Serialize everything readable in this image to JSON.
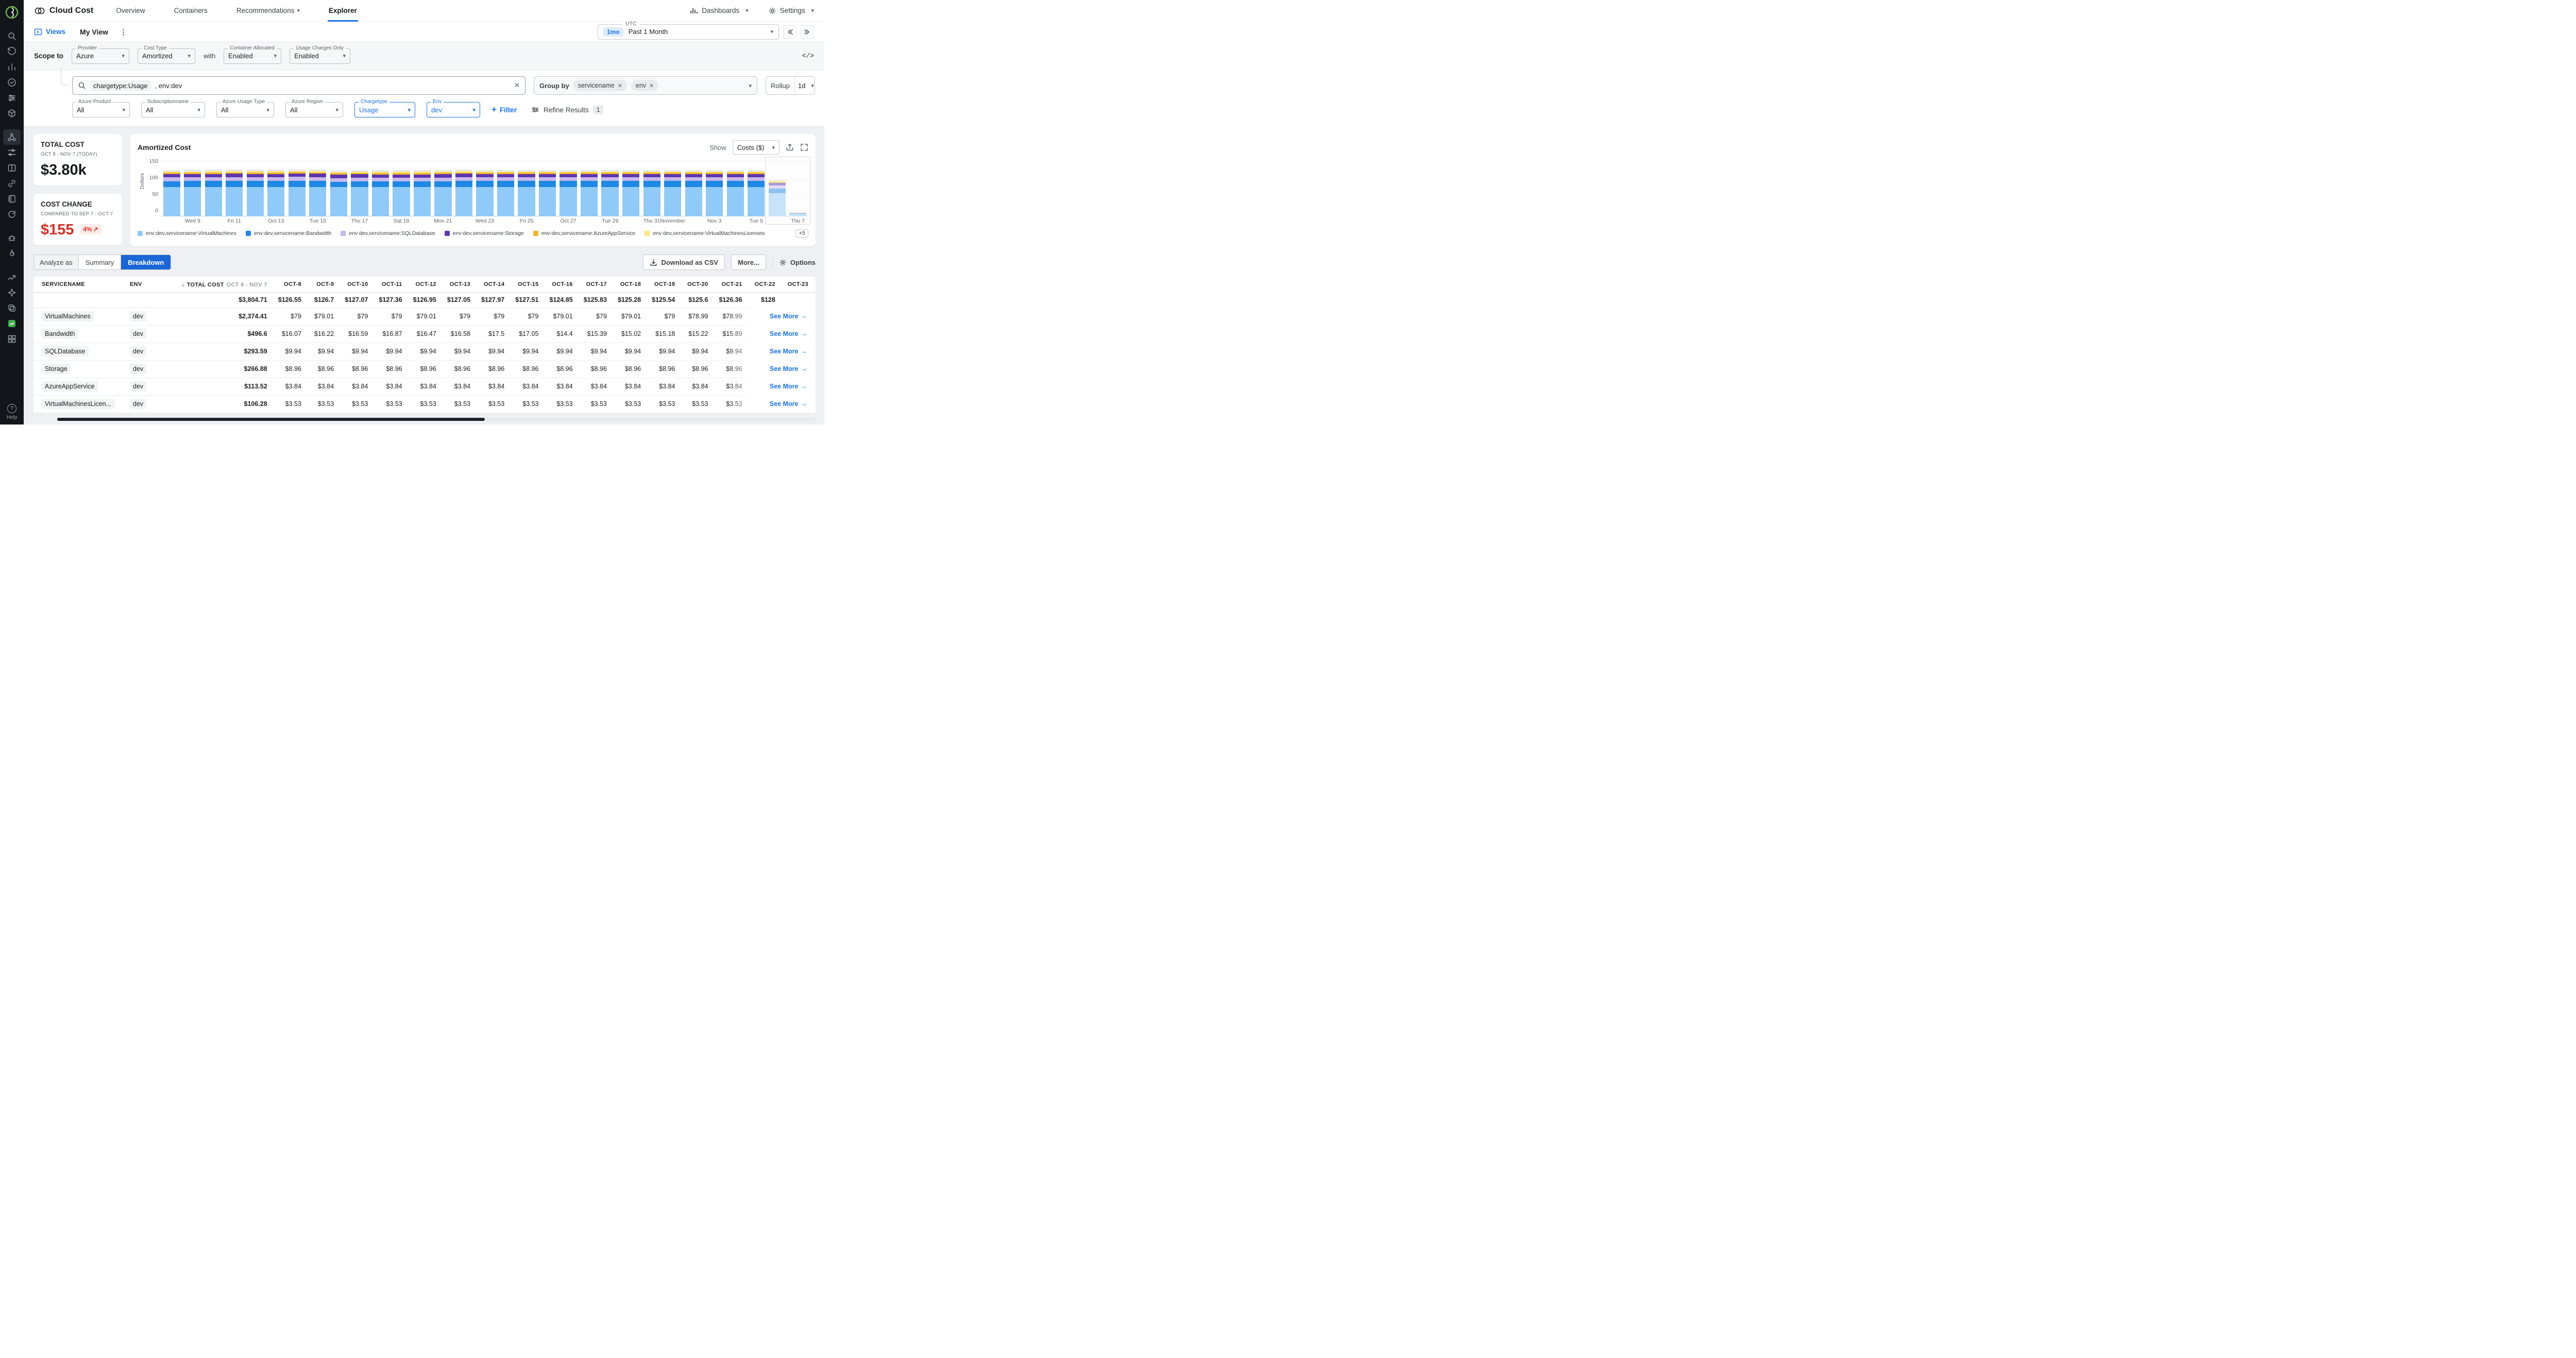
{
  "accent": "#1a73e8",
  "sidebar": {
    "help_label": "Help",
    "icon_names": [
      "app-logo",
      "search-icon",
      "history-icon",
      "bar-chart-icon",
      "check-circle-icon",
      "abacus-icon",
      "cube-icon",
      "network-nodes-icon",
      "tune-icon",
      "columns-icon",
      "link-icon",
      "notebook-icon",
      "sync-icon",
      "bug-icon",
      "flame-icon",
      "trend-icon",
      "spark-icon",
      "copy-icon",
      "cloud-cost-active-icon",
      "grid-icon",
      "help-icon"
    ]
  },
  "topnav": {
    "brand": "Cloud Cost",
    "items": [
      "Overview",
      "Containers",
      "Recommendations",
      "Explorer"
    ],
    "active": "Explorer",
    "dashboards": "Dashboards",
    "settings": "Settings"
  },
  "viewsbar": {
    "views_label": "Views",
    "current_view": "My View",
    "timezone_label": "UTC",
    "range_badge": "1mo",
    "range_value": "Past 1 Month"
  },
  "scope": {
    "label": "Scope to",
    "with_label": "with",
    "selects": [
      {
        "label": "Provider",
        "value": "Azure"
      },
      {
        "label": "Cost Type",
        "value": "Amortized"
      },
      {
        "label": "Container Allocated",
        "value": "Enabled"
      },
      {
        "label": "Usage Charges Only",
        "value": "Enabled"
      }
    ]
  },
  "filterbar": {
    "search_tokens": [
      "chargetype:Usage",
      ", env:dev"
    ],
    "group_by_label": "Group by",
    "group_chips": [
      "servicename",
      "env"
    ],
    "rollup_label": "Rollup",
    "rollup_value": "1d",
    "selects": [
      {
        "label": "Azure Product",
        "value": "All"
      },
      {
        "label": "Subscriptionname",
        "value": "All"
      },
      {
        "label": "Azure Usage Type",
        "value": "All"
      },
      {
        "label": "Azure Region",
        "value": "All"
      },
      {
        "label": "Chargetype",
        "value": "Usage"
      },
      {
        "label": "Env",
        "value": "dev"
      }
    ],
    "add_filter": "Filter",
    "refine": "Refine Results",
    "refine_count": "1"
  },
  "cards": {
    "total": {
      "title": "TOTAL COST",
      "subtitle": "OCT 8 - NOV 7 (TODAY)",
      "value": "$3.80k"
    },
    "change": {
      "title": "COST CHANGE",
      "subtitle": "COMPARED TO SEP 7 - OCT 7",
      "value": "$155",
      "delta": "4%",
      "delta_arrow": "↗"
    }
  },
  "chart": {
    "title": "Amortized Cost",
    "show_label": "Show",
    "show_value": "Costs ($)",
    "ylabel": "Dollars",
    "ytick_labels": [
      "150",
      "100",
      "50",
      "0"
    ],
    "more_badge": "+5"
  },
  "chart_data": {
    "type": "bar",
    "stacked": true,
    "title": "Amortized Cost",
    "ylabel": "Dollars",
    "ylim": [
      0,
      150
    ],
    "legend_position": "bottom",
    "x": [
      "Oct 8",
      "Oct 9",
      "Oct 10",
      "Oct 11",
      "Oct 12",
      "Oct 13",
      "Oct 14",
      "Oct 15",
      "Oct 16",
      "Oct 17",
      "Oct 18",
      "Oct 19",
      "Oct 20",
      "Oct 21",
      "Oct 22",
      "Oct 23",
      "Oct 24",
      "Oct 25",
      "Oct 26",
      "Oct 27",
      "Oct 28",
      "Oct 29",
      "Oct 30",
      "Oct 31",
      "Nov 1",
      "Nov 2",
      "Nov 3",
      "Nov 4",
      "Nov 5",
      "Nov 6",
      "Nov 7"
    ],
    "xticks": [
      {
        "i": 1,
        "t": "Wed 9"
      },
      {
        "i": 3,
        "t": "Fri 11"
      },
      {
        "i": 5,
        "t": "Oct 13"
      },
      {
        "i": 7,
        "t": "Tue 15"
      },
      {
        "i": 9,
        "t": "Thu 17"
      },
      {
        "i": 11,
        "t": "Sat 19"
      },
      {
        "i": 13,
        "t": "Mon 21"
      },
      {
        "i": 15,
        "t": "Wed 23"
      },
      {
        "i": 17,
        "t": "Fri 25"
      },
      {
        "i": 19,
        "t": "Oct 27"
      },
      {
        "i": 21,
        "t": "Tue 29"
      },
      {
        "i": 23,
        "t": "Thu 31"
      },
      {
        "i": 24,
        "t": "November"
      },
      {
        "i": 26,
        "t": "Nov 3"
      },
      {
        "i": 28,
        "t": "Tue 5"
      },
      {
        "i": 30,
        "t": "Thu 7"
      }
    ],
    "series": [
      {
        "name": "VirtualMachines",
        "label": "env:dev,servicename:VirtualMachines",
        "color": "#90CAF9",
        "values": [
          79,
          79.01,
          79,
          79,
          79.01,
          79,
          79,
          79,
          79.01,
          79,
          79.01,
          79,
          78.99,
          78.99,
          79,
          79,
          79,
          79,
          79,
          79,
          79,
          79,
          79,
          79,
          79,
          79,
          79,
          79,
          79,
          62,
          7
        ]
      },
      {
        "name": "Bandwidth",
        "label": "env:dev,servicename:Bandwidth",
        "color": "#1E88E5",
        "values": [
          16.07,
          16.22,
          16.59,
          16.87,
          16.47,
          16.58,
          17.5,
          17.05,
          14.4,
          15.39,
          15.02,
          15.18,
          15.22,
          15.89,
          17,
          16.2,
          16.2,
          16.2,
          16.2,
          16.2,
          16.2,
          16.2,
          16.2,
          16.2,
          16.2,
          16.2,
          16.2,
          16.2,
          16.2,
          13,
          1.4
        ]
      },
      {
        "name": "SQLDatabase",
        "label": "env:dev,servicename:SQLDatabase",
        "color": "#C9B8EC",
        "values": [
          9.94,
          9.94,
          9.94,
          9.94,
          9.94,
          9.94,
          9.94,
          9.94,
          9.94,
          9.94,
          9.94,
          9.94,
          9.94,
          9.94,
          9.94,
          9.94,
          9.94,
          9.94,
          9.94,
          9.94,
          9.94,
          9.94,
          9.94,
          9.94,
          9.94,
          9.94,
          9.94,
          9.94,
          9.94,
          8.2,
          0.9
        ]
      },
      {
        "name": "Storage",
        "label": "env:dev,servicename:Storage",
        "color": "#5E35B1",
        "values": [
          8.96,
          8.96,
          8.96,
          8.96,
          8.96,
          8.96,
          8.96,
          8.96,
          8.96,
          8.96,
          8.96,
          8.96,
          8.96,
          8.96,
          8.96,
          8.96,
          8.96,
          8.96,
          8.96,
          8.96,
          8.96,
          8.96,
          8.96,
          8.96,
          8.96,
          8.96,
          8.96,
          8.96,
          8.96,
          7.4,
          0.8
        ]
      },
      {
        "name": "AzureAppService",
        "label": "env:dev,servicename:AzureAppService",
        "color": "#F0B429",
        "values": [
          3.84,
          3.84,
          3.84,
          3.84,
          3.84,
          3.84,
          3.84,
          3.84,
          3.84,
          3.84,
          3.84,
          3.84,
          3.84,
          3.84,
          3.84,
          3.84,
          3.84,
          3.84,
          3.84,
          3.84,
          3.84,
          3.84,
          3.84,
          3.84,
          3.84,
          3.84,
          3.84,
          3.84,
          3.84,
          3.2,
          0.35
        ]
      },
      {
        "name": "VirtualMachinesLicenses",
        "label": "env:dev,servicename:VirtualMachinesLicenses",
        "color": "#FFE57F",
        "values": [
          3.53,
          3.53,
          3.53,
          3.53,
          3.53,
          3.53,
          3.53,
          3.53,
          3.53,
          3.53,
          3.53,
          3.53,
          3.53,
          3.53,
          3.53,
          3.53,
          3.53,
          3.53,
          3.53,
          3.53,
          3.53,
          3.53,
          3.53,
          3.53,
          3.53,
          3.53,
          3.53,
          3.53,
          3.53,
          2.9,
          0.3
        ]
      },
      {
        "name": "Other",
        "label": "",
        "color": "#E4E8F0",
        "values": [
          4.3,
          4.3,
          4.3,
          4.3,
          4.3,
          4.3,
          4.3,
          4.3,
          4.3,
          4.3,
          4.3,
          4.3,
          4.3,
          4.3,
          4.3,
          4.3,
          4.3,
          4.3,
          4.3,
          4.3,
          4.3,
          4.3,
          4.3,
          4.3,
          4.3,
          4.3,
          4.3,
          4.3,
          4.3,
          3.5,
          0.4
        ]
      }
    ]
  },
  "analyze": {
    "label": "Analyze as",
    "tabs": [
      "Summary",
      "Breakdown"
    ],
    "active": "Breakdown",
    "download": "Download as CSV",
    "more": "More...",
    "options": "Options"
  },
  "table": {
    "columns": [
      "SERVICENAME",
      "ENV",
      "TOTAL COST",
      "OCT-8",
      "OCT-9",
      "OCT-10",
      "OCT-11",
      "OCT-12",
      "OCT-13",
      "OCT-14",
      "OCT-15",
      "OCT-16",
      "OCT-17",
      "OCT-18",
      "OCT-19",
      "OCT-20",
      "OCT-21",
      "OCT-22",
      "OCT-23"
    ],
    "total_cost_sub": "OCT 8 - NOV 7",
    "see_more": "See More",
    "see_more_arrow": "→",
    "totals": {
      "total": "$3,804.71",
      "values": [
        "$126.55",
        "$126.7",
        "$127.07",
        "$127.36",
        "$126.95",
        "$127.05",
        "$127.97",
        "$127.51",
        "$124.85",
        "$125.83",
        "$125.28",
        "$125.54",
        "$125.6",
        "$126.36",
        "$128"
      ]
    },
    "rows": [
      {
        "service": "VirtualMachines",
        "env": "dev",
        "total": "$2,374.41",
        "values": [
          "$79",
          "$79.01",
          "$79",
          "$79",
          "$79.01",
          "$79",
          "$79",
          "$79",
          "$79.01",
          "$79",
          "$79.01",
          "$79",
          "$78.99",
          "$78.99",
          ""
        ]
      },
      {
        "service": "Bandwidth",
        "env": "dev",
        "total": "$496.6",
        "values": [
          "$16.07",
          "$16.22",
          "$16.59",
          "$16.87",
          "$16.47",
          "$16.58",
          "$17.5",
          "$17.05",
          "$14.4",
          "$15.39",
          "$15.02",
          "$15.18",
          "$15.22",
          "$15.89",
          "$17"
        ]
      },
      {
        "service": "SQLDatabase",
        "env": "dev",
        "total": "$293.59",
        "values": [
          "$9.94",
          "$9.94",
          "$9.94",
          "$9.94",
          "$9.94",
          "$9.94",
          "$9.94",
          "$9.94",
          "$9.94",
          "$9.94",
          "$9.94",
          "$9.94",
          "$9.94",
          "$9.94",
          "$9"
        ]
      },
      {
        "service": "Storage",
        "env": "dev",
        "total": "$266.88",
        "values": [
          "$8.96",
          "$8.96",
          "$8.96",
          "$8.96",
          "$8.96",
          "$8.96",
          "$8.96",
          "$8.96",
          "$8.96",
          "$8.96",
          "$8.96",
          "$8.96",
          "$8.96",
          "$8.96",
          "$8"
        ]
      },
      {
        "service": "AzureAppService",
        "env": "dev",
        "total": "$113.52",
        "values": [
          "$3.84",
          "$3.84",
          "$3.84",
          "$3.84",
          "$3.84",
          "$3.84",
          "$3.84",
          "$3.84",
          "$3.84",
          "$3.84",
          "$3.84",
          "$3.84",
          "$3.84",
          "$3.84",
          "$3"
        ]
      },
      {
        "service": "VirtualMachinesLicen...",
        "env": "dev",
        "total": "$106.28",
        "values": [
          "$3.53",
          "$3.53",
          "$3.53",
          "$3.53",
          "$3.53",
          "$3.53",
          "$3.53",
          "$3.53",
          "$3.53",
          "$3.53",
          "$3.53",
          "$3.53",
          "$3.53",
          "$3.53",
          "$3"
        ]
      }
    ]
  }
}
